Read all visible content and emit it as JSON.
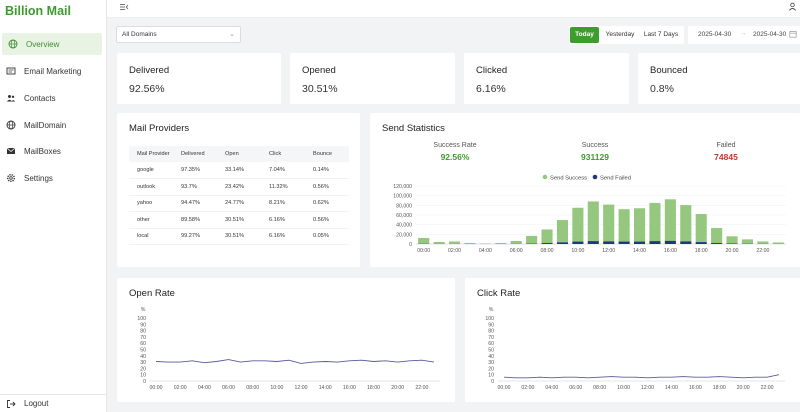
{
  "app": {
    "brand": "Billion Mail"
  },
  "sidebar": {
    "items": [
      {
        "label": "Overview",
        "icon": "globe-icon",
        "active": true
      },
      {
        "label": "Email Marketing",
        "icon": "email-marketing-icon"
      },
      {
        "label": "Contacts",
        "icon": "contacts-icon"
      },
      {
        "label": "MailDomain",
        "icon": "globe-icon"
      },
      {
        "label": "MailBoxes",
        "icon": "mailbox-icon"
      },
      {
        "label": "Settings",
        "icon": "gear-icon"
      }
    ],
    "logout": "Logout"
  },
  "filters": {
    "domain": "All Domains",
    "ranges": [
      "Today",
      "Yesterday",
      "Last 7 Days"
    ],
    "active_range": "Today",
    "date_start": "2025-04-30",
    "date_end": "2025-04-30"
  },
  "stats": [
    {
      "label": "Delivered",
      "value": "92.56%"
    },
    {
      "label": "Opened",
      "value": "30.51%"
    },
    {
      "label": "Clicked",
      "value": "6.16%"
    },
    {
      "label": "Bounced",
      "value": "0.8%"
    }
  ],
  "providers": {
    "title": "Mail Providers",
    "columns": [
      "Mail Provider",
      "Delivered",
      "Open",
      "Click",
      "Bounce"
    ],
    "rows": [
      [
        "google",
        "97.35%",
        "33.14%",
        "7.04%",
        "0.14%"
      ],
      [
        "outlook",
        "93.7%",
        "23.42%",
        "11.32%",
        "0.56%"
      ],
      [
        "yahoo",
        "94.47%",
        "24.77%",
        "8.21%",
        "0.62%"
      ],
      [
        "other",
        "89.58%",
        "30.51%",
        "6.16%",
        "0.56%"
      ],
      [
        "local",
        "99.27%",
        "30.51%",
        "6.16%",
        "0.05%"
      ]
    ]
  },
  "send_statistics": {
    "title": "Send Statistics",
    "success_rate_label": "Success Rate",
    "success_rate": "92.56%",
    "success_label": "Success",
    "success": "931129",
    "failed_label": "Failed",
    "failed": "74845"
  },
  "colors": {
    "accent": "#3e9b2e",
    "success_bar": "#95c77e",
    "failed_bar": "#1f3a7a",
    "failed_text": "#c0392b",
    "line": "#5a5a9a"
  },
  "chart_data": [
    {
      "type": "bar",
      "title": "Send Statistics",
      "categories": [
        "00:00",
        "01:00",
        "02:00",
        "03:00",
        "04:00",
        "05:00",
        "06:00",
        "07:00",
        "08:00",
        "09:00",
        "10:00",
        "11:00",
        "12:00",
        "13:00",
        "14:00",
        "15:00",
        "16:00",
        "17:00",
        "18:00",
        "19:00",
        "20:00",
        "21:00",
        "22:00",
        "23:00"
      ],
      "x_tick_labels": [
        "00:00",
        "02:00",
        "04:00",
        "06:00",
        "08:00",
        "10:00",
        "12:00",
        "14:00",
        "16:00",
        "18:00",
        "20:00",
        "22:00"
      ],
      "series": [
        {
          "name": "Send Success",
          "values": [
            12000,
            4000,
            5000,
            2000,
            1000,
            2000,
            6000,
            16000,
            28000,
            46000,
            70000,
            82000,
            76000,
            67000,
            69000,
            79000,
            86000,
            75000,
            58000,
            31000,
            15000,
            9000,
            5000,
            3000
          ]
        },
        {
          "name": "Send Failed",
          "values": [
            500,
            200,
            200,
            100,
            50,
            100,
            300,
            800,
            2000,
            3500,
            5000,
            6000,
            5500,
            5000,
            5000,
            6000,
            6500,
            5500,
            4000,
            2000,
            1000,
            600,
            300,
            150
          ]
        }
      ],
      "stacked": true,
      "ylim": [
        0,
        120000
      ],
      "yticks": [
        0,
        20000,
        40000,
        60000,
        80000,
        100000,
        120000
      ],
      "ytick_labels": [
        "0",
        "20,000",
        "40,000",
        "60,000",
        "80,000",
        "100,000",
        "120,000"
      ],
      "legend": "top-center"
    },
    {
      "type": "line",
      "title": "Open Rate",
      "ylabel": "%",
      "ylim": [
        0,
        100
      ],
      "yticks": [
        0,
        10,
        20,
        30,
        40,
        50,
        60,
        70,
        80,
        90,
        100
      ],
      "x_tick_labels": [
        "00:00",
        "02:00",
        "04:00",
        "06:00",
        "08:00",
        "10:00",
        "12:00",
        "14:00",
        "16:00",
        "18:00",
        "20:00",
        "22:00"
      ],
      "values": [
        31,
        30,
        30,
        32,
        29,
        31,
        34,
        30,
        32,
        32,
        31,
        33,
        28,
        30,
        31,
        30,
        32,
        33,
        31,
        32,
        30,
        32,
        33,
        30
      ]
    },
    {
      "type": "line",
      "title": "Click Rate",
      "ylabel": "%",
      "ylim": [
        0,
        100
      ],
      "yticks": [
        0,
        10,
        20,
        30,
        40,
        50,
        60,
        70,
        80,
        90,
        100
      ],
      "x_tick_labels": [
        "00:00",
        "02:00",
        "04:00",
        "06:00",
        "08:00",
        "10:00",
        "12:00",
        "14:00",
        "16:00",
        "18:00",
        "20:00",
        "22:00"
      ],
      "values": [
        6,
        5,
        5,
        6,
        5,
        6,
        6,
        5,
        6,
        7,
        6,
        6,
        5,
        6,
        6,
        7,
        6,
        6,
        7,
        6,
        5,
        6,
        6,
        10
      ]
    }
  ]
}
